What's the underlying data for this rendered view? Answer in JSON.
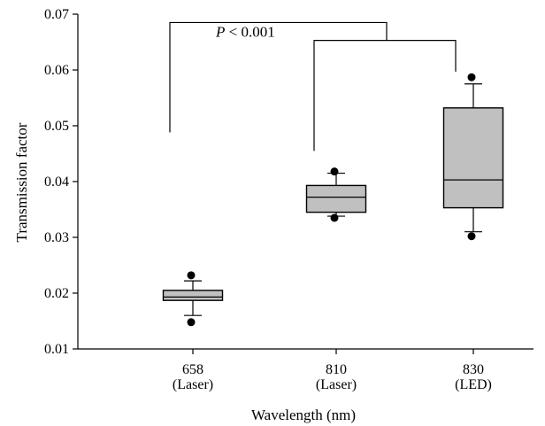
{
  "chart_data": {
    "type": "box",
    "xlabel": "Wavelength (nm)",
    "ylabel": "Transmission factor",
    "ylim": [
      0.01,
      0.07
    ],
    "yticks": [
      "0.01",
      "0.02",
      "0.03",
      "0.04",
      "0.05",
      "0.06",
      "0.07"
    ],
    "yticks_values": [
      0.01,
      0.02,
      0.03,
      0.04,
      0.05,
      0.06,
      0.07
    ],
    "grid": false,
    "boxes": [
      {
        "label": "658",
        "sublabel": "(Laser)",
        "whisker_low": 0.016,
        "q1": 0.0187,
        "median": 0.0193,
        "q3": 0.0205,
        "whisker_high": 0.0222,
        "outliers": [
          0.0148,
          0.0232
        ]
      },
      {
        "label": "810",
        "sublabel": "(Laser)",
        "whisker_low": 0.0338,
        "q1": 0.0345,
        "median": 0.0372,
        "q3": 0.0393,
        "whisker_high": 0.0415,
        "outliers": [
          0.0335,
          0.0418
        ]
      },
      {
        "label": "830",
        "sublabel": "(LED)",
        "whisker_low": 0.031,
        "q1": 0.0353,
        "median": 0.0403,
        "q3": 0.0532,
        "whisker_high": 0.0575,
        "outliers": [
          0.0302,
          0.0587
        ]
      }
    ],
    "box_color": "#c0c0c0",
    "annotation": {
      "prefix": "P",
      "suffix": " < 0.001",
      "bracket_top": 0.0685,
      "bracket_mid": 0.0653,
      "bracket_low_658": 0.0488,
      "bracket_low_810": 0.0455,
      "bracket_low_830": 0.0597
    }
  }
}
